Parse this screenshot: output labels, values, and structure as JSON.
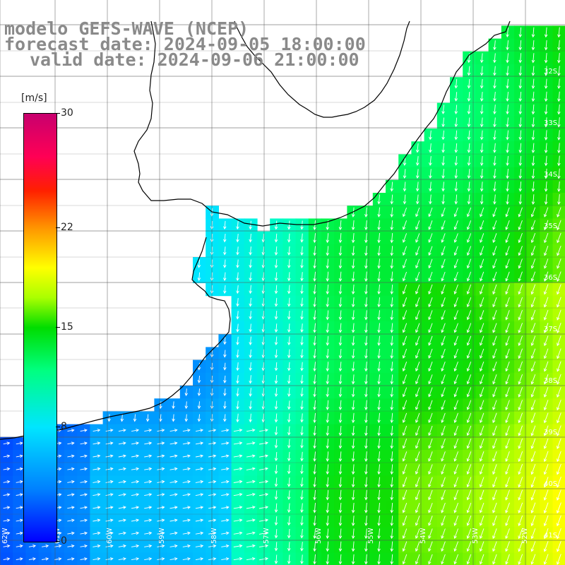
{
  "title": {
    "line1": "modelo GEFS-WAVE (NCEP)",
    "line2": "forecast date: 2024-09-05 18:00:00",
    "line3": "valid date: 2024-09-06 21:00:00"
  },
  "legend": {
    "unit": "[m/s]",
    "min": 0,
    "max": 30,
    "ticks": [
      "30",
      "22",
      "15",
      "8",
      "0"
    ],
    "tick_values": [
      30,
      22,
      15,
      8,
      0
    ],
    "colors": [
      "#0000ff",
      "#007fff",
      "#00e5ff",
      "#00ff80",
      "#00dd00",
      "#ffff00",
      "#ff9900",
      "#ff2000",
      "#c8006e"
    ]
  },
  "map": {
    "variable": "wind speed",
    "land_color": "#ffffff",
    "grid": true,
    "vector_color": "#ffffff",
    "lat_labels": [
      "32S",
      "33S",
      "34S",
      "35S",
      "36S",
      "37S",
      "38S",
      "39S",
      "40S",
      "41S"
    ],
    "lon_labels": [
      "62W",
      "61W",
      "60W",
      "59W",
      "58W",
      "57W",
      "56W",
      "55W",
      "54W",
      "53W",
      "52W"
    ]
  }
}
